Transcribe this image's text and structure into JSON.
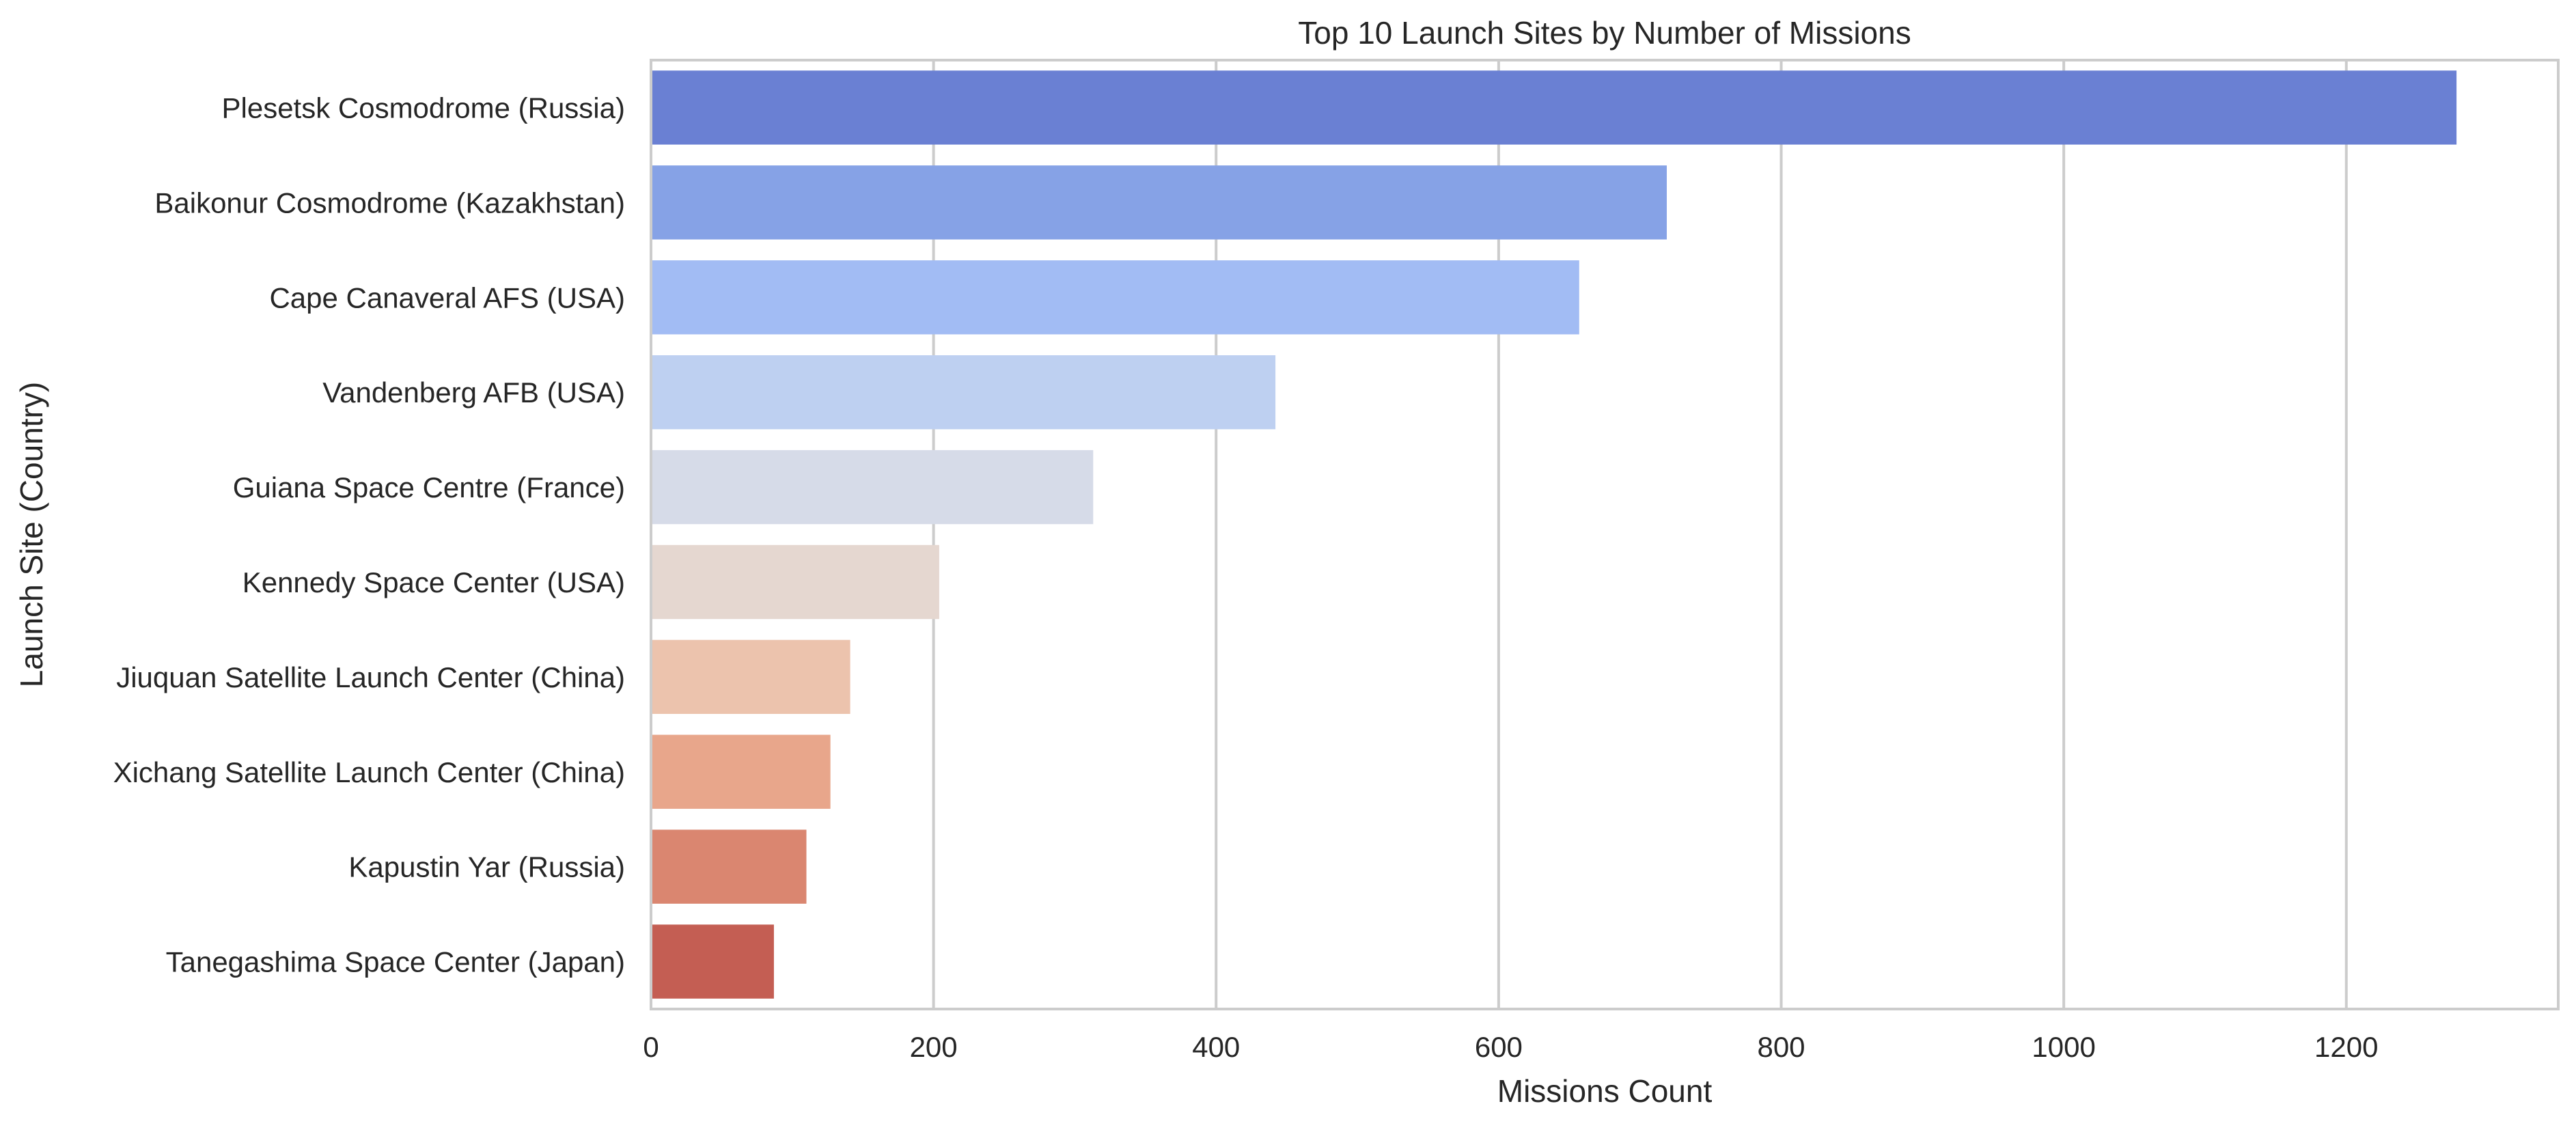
{
  "chart_data": {
    "type": "bar",
    "orientation": "horizontal",
    "title": "Top 10 Launch Sites by Number of Missions",
    "xlabel": "Missions Count",
    "ylabel": "Launch Site (Country)",
    "xlim": [
      0,
      1350
    ],
    "xticks": [
      0,
      200,
      400,
      600,
      800,
      1000,
      1200
    ],
    "grid": "vertical",
    "categories": [
      "Plesetsk Cosmodrome (Russia)",
      "Baikonur Cosmodrome (Kazakhstan)",
      "Cape Canaveral AFS (USA)",
      "Vandenberg AFB (USA)",
      "Guiana Space Centre (France)",
      "Kennedy Space Center (USA)",
      "Jiuquan Satellite Launch Center (China)",
      "Xichang Satellite Launch Center (China)",
      "Kapustin Yar (Russia)",
      "Tanegashima Space Center (Japan)"
    ],
    "values": [
      1278,
      719,
      657,
      442,
      313,
      204,
      141,
      127,
      110,
      87
    ],
    "colors": [
      "#6a80d3",
      "#86a2e6",
      "#a2bcf4",
      "#bed0f1",
      "#d6dbe8",
      "#e5d7d0",
      "#ecc3ad",
      "#e8a68b",
      "#da8670",
      "#c45e53"
    ],
    "palette": "coolwarm"
  }
}
